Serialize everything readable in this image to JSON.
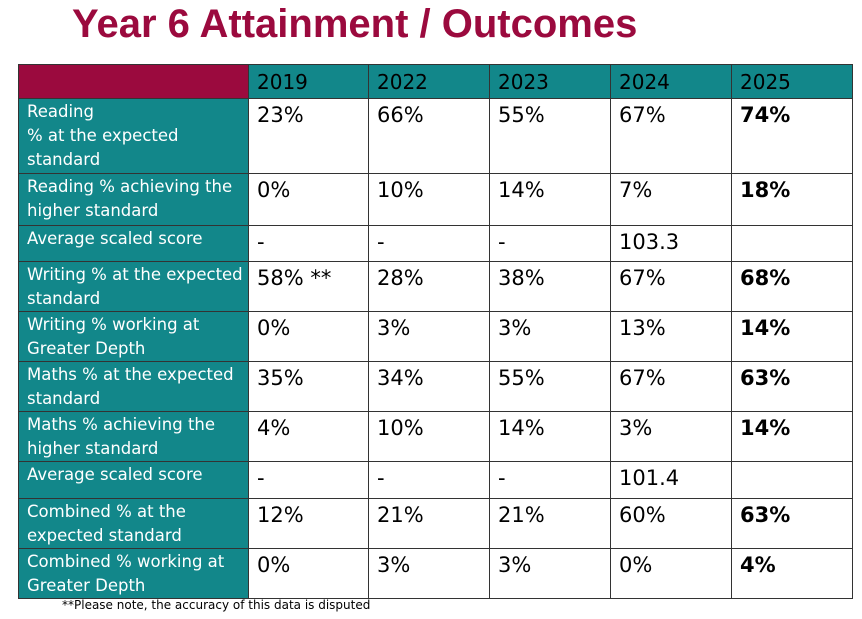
{
  "title": "Year 6 Attainment / Outcomes",
  "table": {
    "header": [
      "2019",
      "2022",
      "2023",
      "2024",
      "2025"
    ],
    "rows": [
      {
        "label": "Reading\n% at the expected standard",
        "values": [
          "23%",
          "66%",
          "55%",
          "67%",
          "74%"
        ]
      },
      {
        "label": "Reading % achieving the higher standard",
        "values": [
          "0%",
          "10%",
          "14%",
          "7%",
          "18%"
        ]
      },
      {
        "label": "Average scaled score",
        "values": [
          "-",
          "-",
          "-",
          "103.3",
          null
        ]
      },
      {
        "label": "Writing % at the expected standard",
        "values": [
          "58% **",
          "28%",
          "38%",
          "67%",
          "68%"
        ]
      },
      {
        "label": "Writing % working at Greater Depth",
        "values": [
          "0%",
          "3%",
          "3%",
          "13%",
          "14%"
        ]
      },
      {
        "label": "Maths % at the expected standard",
        "values": [
          "35%",
          "34%",
          "55%",
          "67%",
          "63%"
        ]
      },
      {
        "label": "Maths % achieving the higher standard",
        "values": [
          "4%",
          "10%",
          "14%",
          "3%",
          "14%"
        ]
      },
      {
        "label": "Average scaled score",
        "values": [
          "-",
          "-",
          "-",
          "101.4",
          null
        ]
      },
      {
        "label": "Combined % at the expected standard",
        "values": [
          "12%",
          "21%",
          "21%",
          "60%",
          "63%"
        ]
      },
      {
        "label": "Combined % working at Greater Depth",
        "values": [
          "0%",
          "3%",
          "3%",
          "0%",
          "4%"
        ]
      }
    ]
  },
  "footnote": "**Please note, the accuracy of this data is disputed"
}
